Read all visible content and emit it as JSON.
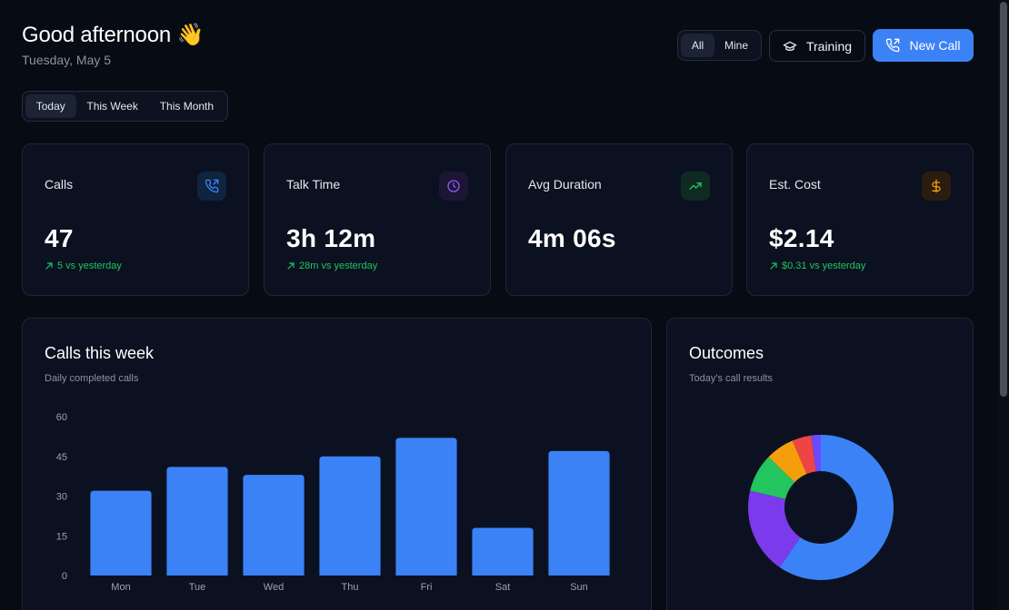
{
  "header": {
    "greeting": "Good afternoon 👋",
    "date": "Tuesday, May 5",
    "scope_toggle": {
      "options": [
        "All",
        "Mine"
      ],
      "selected": "All"
    },
    "training_label": "Training",
    "new_call_label": "New Call"
  },
  "range_tabs": {
    "options": [
      "Today",
      "This Week",
      "This Month"
    ],
    "selected": "Today"
  },
  "stats": [
    {
      "label": "Calls",
      "value": "47",
      "delta": "5 vs yesterday",
      "icon": "phone-outgoing-icon",
      "accent": "#3b82f6"
    },
    {
      "label": "Talk Time",
      "value": "3h 12m",
      "delta": "28m vs yesterday",
      "icon": "clock-icon",
      "accent": "#8b5cf6"
    },
    {
      "label": "Avg Duration",
      "value": "4m 06s",
      "delta": "",
      "icon": "trending-up-icon",
      "accent": "#22c55e"
    },
    {
      "label": "Est. Cost",
      "value": "$2.14",
      "delta": "$0.31 vs yesterday",
      "icon": "dollar-icon",
      "accent": "#f59e0b"
    }
  ],
  "weekly_panel": {
    "title": "Calls this week",
    "subtitle": "Daily completed calls"
  },
  "outcomes_panel": {
    "title": "Outcomes",
    "subtitle": "Today's call results"
  },
  "chart_data": [
    {
      "type": "bar",
      "title": "Calls this week",
      "subtitle": "Daily completed calls",
      "categories": [
        "Mon",
        "Tue",
        "Wed",
        "Thu",
        "Fri",
        "Sat",
        "Sun"
      ],
      "values": [
        32,
        41,
        38,
        45,
        52,
        18,
        47
      ],
      "yticks": [
        0,
        15,
        30,
        45,
        60
      ],
      "ylim": [
        0,
        60
      ],
      "grid": false,
      "color": "#3b82f6"
    },
    {
      "type": "pie",
      "title": "Outcomes",
      "subtitle": "Today's call results",
      "donut": true,
      "values": [
        28,
        9,
        4,
        3,
        2,
        1
      ],
      "colors": [
        "#3b82f6",
        "#7c3aed",
        "#22c55e",
        "#f59e0b",
        "#ef4444",
        "#6d4aff"
      ]
    }
  ]
}
